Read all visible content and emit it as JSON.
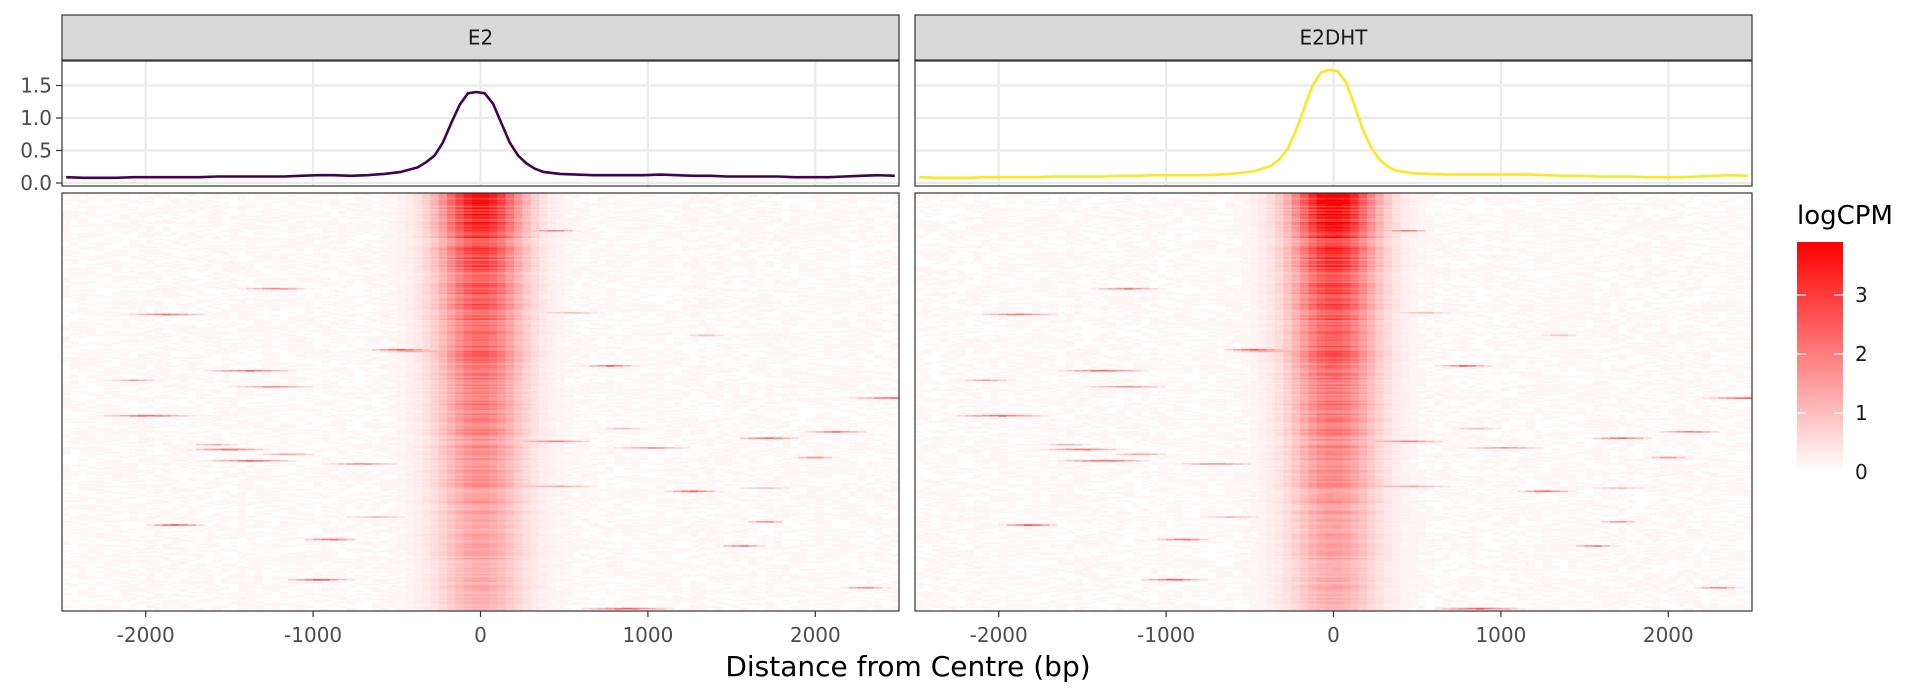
{
  "chart_data": {
    "type": "heatmap",
    "xlabel": "Distance from Centre (bp)",
    "xlim": [
      -2500,
      2500
    ],
    "x_ticks": [
      -2000,
      -1000,
      0,
      1000,
      2000
    ],
    "x_tick_labels": [
      "-2000",
      "-1000",
      "0",
      "1000",
      "2000"
    ],
    "grid": true,
    "panels": [
      {
        "name": "E2",
        "line_color": "#440154",
        "profile": {
          "type": "line",
          "ylim": [
            0,
            1.8
          ],
          "y_ticks": [
            0,
            0.5,
            1,
            1.5
          ],
          "y_tick_labels": [
            "0.0",
            "0.5",
            "1.0",
            "1.5"
          ],
          "x": [
            -2475,
            -2375,
            -2275,
            -2175,
            -2075,
            -1975,
            -1875,
            -1775,
            -1675,
            -1575,
            -1475,
            -1375,
            -1275,
            -1175,
            -1075,
            -975,
            -875,
            -775,
            -675,
            -575,
            -475,
            -375,
            -325,
            -275,
            -225,
            -175,
            -125,
            -75,
            -25,
            25,
            75,
            125,
            175,
            225,
            275,
            325,
            375,
            475,
            575,
            675,
            775,
            875,
            975,
            1075,
            1175,
            1275,
            1375,
            1475,
            1575,
            1675,
            1775,
            1875,
            1975,
            2075,
            2175,
            2275,
            2375,
            2475
          ],
          "y": [
            0.09,
            0.08,
            0.08,
            0.08,
            0.09,
            0.09,
            0.09,
            0.09,
            0.09,
            0.1,
            0.1,
            0.1,
            0.1,
            0.1,
            0.11,
            0.12,
            0.12,
            0.11,
            0.12,
            0.14,
            0.17,
            0.24,
            0.32,
            0.42,
            0.62,
            0.92,
            1.2,
            1.38,
            1.4,
            1.38,
            1.22,
            0.92,
            0.62,
            0.42,
            0.3,
            0.22,
            0.17,
            0.14,
            0.13,
            0.12,
            0.12,
            0.12,
            0.12,
            0.13,
            0.12,
            0.11,
            0.11,
            0.1,
            0.1,
            0.1,
            0.1,
            0.09,
            0.09,
            0.09,
            0.1,
            0.11,
            0.12,
            0.11
          ]
        }
      },
      {
        "name": "E2DHT",
        "line_color": "#fde725",
        "profile": {
          "type": "line",
          "ylim": [
            0,
            1.8
          ],
          "y_ticks": [
            0,
            0.5,
            1,
            1.5
          ],
          "y_tick_labels": [
            "0.0",
            "0.5",
            "1.0",
            "1.5"
          ],
          "x": [
            -2475,
            -2375,
            -2275,
            -2175,
            -2075,
            -1975,
            -1875,
            -1775,
            -1675,
            -1575,
            -1475,
            -1375,
            -1275,
            -1175,
            -1075,
            -975,
            -875,
            -775,
            -675,
            -575,
            -475,
            -375,
            -325,
            -275,
            -225,
            -175,
            -125,
            -75,
            -25,
            25,
            75,
            125,
            175,
            225,
            275,
            325,
            375,
            475,
            575,
            675,
            775,
            875,
            975,
            1075,
            1175,
            1275,
            1375,
            1475,
            1575,
            1675,
            1775,
            1875,
            1975,
            2075,
            2175,
            2275,
            2375,
            2475
          ],
          "y": [
            0.09,
            0.08,
            0.08,
            0.08,
            0.09,
            0.09,
            0.09,
            0.09,
            0.1,
            0.1,
            0.1,
            0.1,
            0.11,
            0.11,
            0.12,
            0.12,
            0.12,
            0.12,
            0.13,
            0.15,
            0.18,
            0.26,
            0.36,
            0.52,
            0.8,
            1.15,
            1.5,
            1.7,
            1.74,
            1.72,
            1.55,
            1.2,
            0.82,
            0.55,
            0.36,
            0.25,
            0.19,
            0.15,
            0.14,
            0.13,
            0.13,
            0.13,
            0.13,
            0.13,
            0.13,
            0.12,
            0.11,
            0.11,
            0.1,
            0.1,
            0.1,
            0.09,
            0.09,
            0.09,
            0.1,
            0.11,
            0.12,
            0.11
          ]
        }
      }
    ],
    "heatmap": {
      "rows": 260,
      "fill_scale": {
        "name": "logCPM",
        "low": "#ffffff",
        "high": "#ff0000",
        "limits": [
          0,
          3.9
        ],
        "breaks": [
          0,
          1,
          2,
          3
        ],
        "labels": [
          "0",
          "1",
          "2",
          "3"
        ]
      },
      "peak_centre_bp": 0,
      "peak_halfwidth_bp": 175,
      "peak_logCPM_top": 3.6,
      "peak_logCPM_bottom": 1.0,
      "background_logCPM": 0.08
    },
    "legend": {
      "title": "logCPM",
      "position": "right"
    }
  }
}
